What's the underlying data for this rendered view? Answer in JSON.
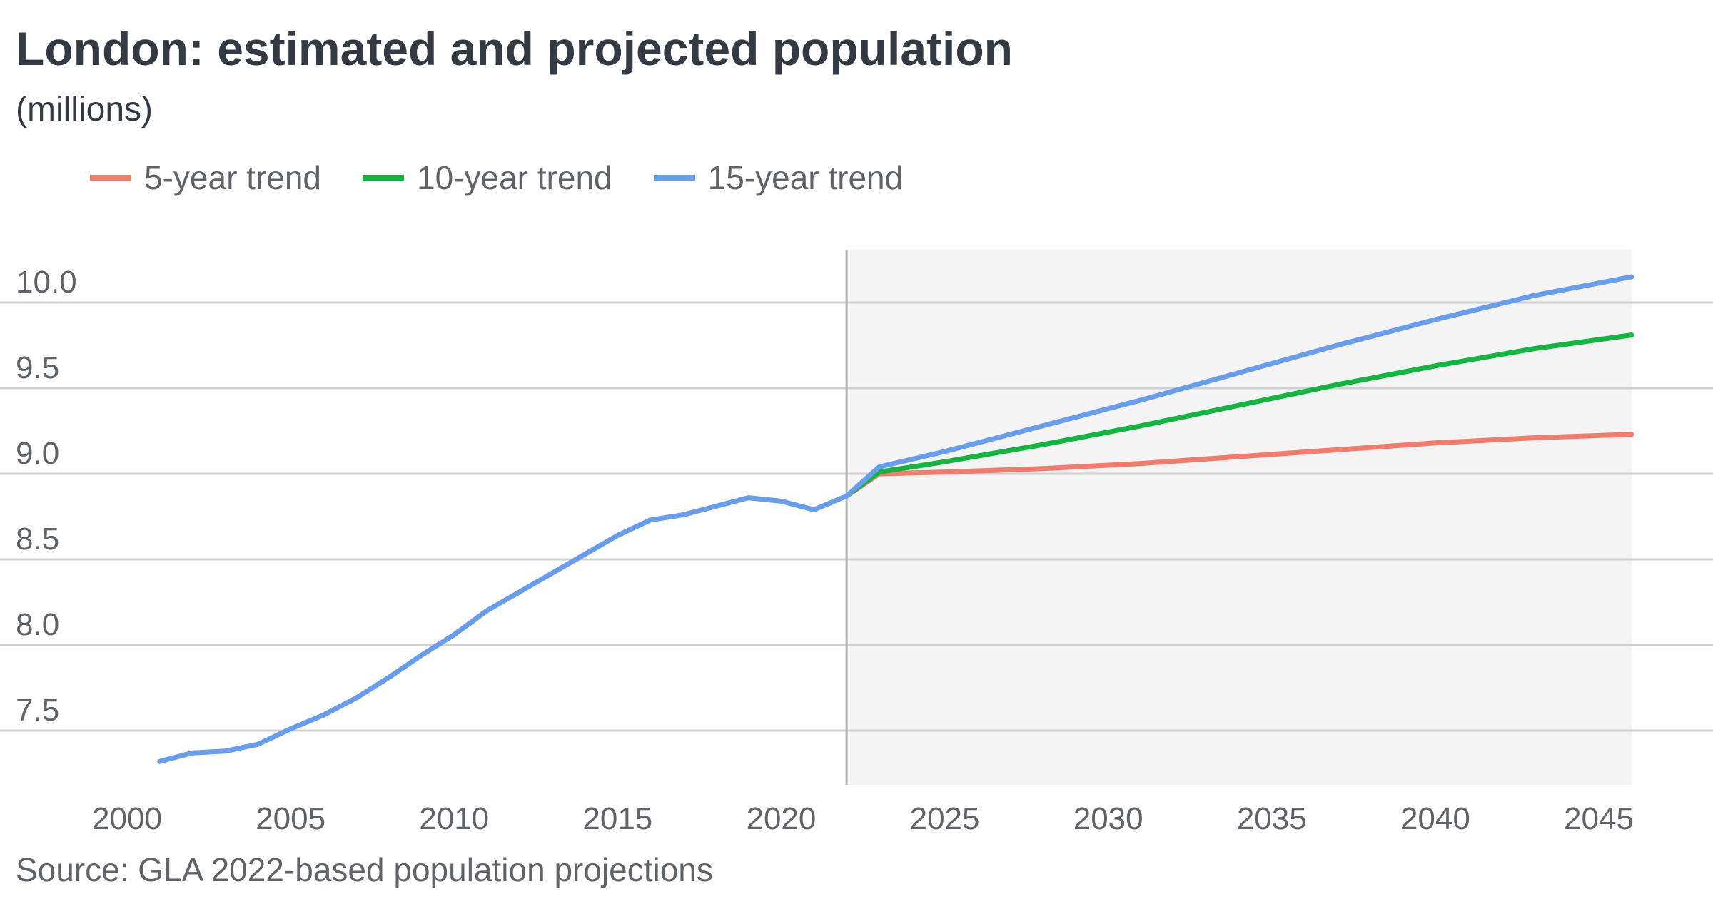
{
  "title": "London: estimated and projected population",
  "subtitle": "(millions)",
  "source": "Source: GLA 2022-based population projections",
  "chart_data": {
    "type": "line",
    "title": "London: estimated and projected population",
    "subtitle": "(millions)",
    "xlabel": "",
    "ylabel": "",
    "xlim": [
      2000,
      2046
    ],
    "ylim": [
      7.2,
      10.2
    ],
    "x_ticks": [
      2000,
      2005,
      2010,
      2015,
      2020,
      2025,
      2030,
      2035,
      2040,
      2045
    ],
    "y_ticks": [
      7.5,
      8.0,
      8.5,
      9.0,
      9.5,
      10.0
    ],
    "y_tick_labels": [
      "7.5",
      "8.0",
      "8.5",
      "9.0",
      "9.5",
      "10.0"
    ],
    "grid": "horizontal",
    "legend_position": "top-left",
    "projection_start": 2022,
    "projection_shading_color": "#f4f4f4",
    "series": [
      {
        "name": "5-year trend",
        "color": "#f27b6c",
        "x": [
          2022,
          2023,
          2025,
          2028,
          2031,
          2034,
          2037,
          2040,
          2043,
          2046
        ],
        "y": [
          8.87,
          9.0,
          9.01,
          9.03,
          9.06,
          9.1,
          9.14,
          9.18,
          9.21,
          9.23
        ]
      },
      {
        "name": "10-year trend",
        "color": "#11b53f",
        "x": [
          2022,
          2023,
          2025,
          2028,
          2031,
          2034,
          2037,
          2040,
          2043,
          2046
        ],
        "y": [
          8.87,
          9.01,
          9.07,
          9.17,
          9.28,
          9.4,
          9.52,
          9.63,
          9.73,
          9.81
        ]
      },
      {
        "name": "15-year trend",
        "color": "#689dee",
        "x": [
          2001,
          2002,
          2003,
          2004,
          2005,
          2006,
          2007,
          2008,
          2009,
          2010,
          2011,
          2012,
          2013,
          2014,
          2015,
          2016,
          2017,
          2018,
          2019,
          2020,
          2021,
          2022,
          2023,
          2025,
          2028,
          2031,
          2034,
          2037,
          2040,
          2043,
          2046
        ],
        "y": [
          7.32,
          7.37,
          7.38,
          7.42,
          7.51,
          7.59,
          7.69,
          7.81,
          7.94,
          8.06,
          8.2,
          8.31,
          8.42,
          8.53,
          8.64,
          8.73,
          8.76,
          8.81,
          8.86,
          8.84,
          8.79,
          8.87,
          9.04,
          9.13,
          9.28,
          9.43,
          9.59,
          9.75,
          9.9,
          10.04,
          10.15
        ]
      }
    ]
  }
}
